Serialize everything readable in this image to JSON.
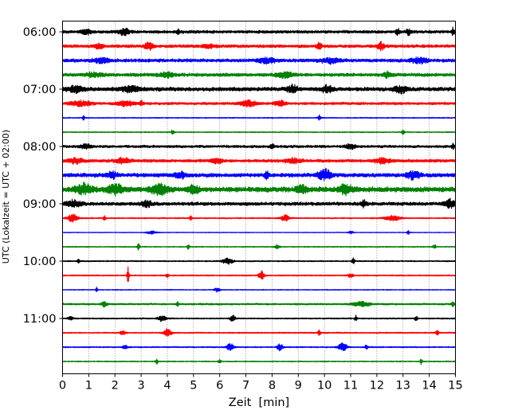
{
  "chart_data": {
    "type": "line",
    "title": "",
    "xlabel": "Zeit  [min]",
    "ylabel": "UTC (Lokalzeit = UTC + 02:00)",
    "xlim": [
      0,
      15
    ],
    "x_ticks": [
      0,
      1,
      2,
      3,
      4,
      5,
      6,
      7,
      8,
      9,
      10,
      11,
      12,
      13,
      14,
      15
    ],
    "x_tick_labels": [
      "0",
      "1",
      "2",
      "3",
      "4",
      "5",
      "6",
      "7",
      "8",
      "9",
      "10",
      "11",
      "12",
      "13",
      "14",
      "15"
    ],
    "grid": "vertical dotted lines at each minute",
    "y_tick_labels": [
      {
        "label": "06:00",
        "row": 0
      },
      {
        "label": "07:00",
        "row": 4
      },
      {
        "label": "08:00",
        "row": 8
      },
      {
        "label": "09:00",
        "row": 12
      },
      {
        "label": "10:00",
        "row": 16
      },
      {
        "label": "11:00",
        "row": 20
      }
    ],
    "row_interval_minutes": 15,
    "colors_cycle": [
      "#000000",
      "#ff0000",
      "#0000ff",
      "#008000"
    ],
    "traces": [
      {
        "start": "06:00",
        "color": "#000000",
        "base": 0.35,
        "events": [
          {
            "t": 2.35,
            "a": 0.7,
            "w": 0.18
          },
          {
            "t": 4.4,
            "a": 0.6,
            "w": 0.05
          },
          {
            "t": 12.8,
            "a": 0.7,
            "w": 0.07
          },
          {
            "t": 13.2,
            "a": 0.5,
            "w": 0.1
          },
          {
            "t": 14.9,
            "a": 0.7,
            "w": 0.05
          },
          {
            "t": 0.9,
            "a": 0.4,
            "w": 0.2
          }
        ]
      },
      {
        "start": "06:15",
        "color": "#ff0000",
        "base": 0.35,
        "events": [
          {
            "t": 3.3,
            "a": 0.7,
            "w": 0.15
          },
          {
            "t": 9.8,
            "a": 0.6,
            "w": 0.1
          },
          {
            "t": 12.15,
            "a": 0.8,
            "w": 0.12
          },
          {
            "t": 5.6,
            "a": 0.4,
            "w": 0.2
          },
          {
            "t": 1.4,
            "a": 0.4,
            "w": 0.2
          }
        ]
      },
      {
        "start": "06:30",
        "color": "#0000ff",
        "base": 0.4,
        "events": [
          {
            "t": 1.5,
            "a": 0.5,
            "w": 0.3
          },
          {
            "t": 7.8,
            "a": 0.5,
            "w": 0.3
          },
          {
            "t": 10.2,
            "a": 0.5,
            "w": 0.3
          },
          {
            "t": 13.6,
            "a": 0.5,
            "w": 0.3
          }
        ]
      },
      {
        "start": "06:45",
        "color": "#008000",
        "base": 0.4,
        "events": [
          {
            "t": 4.0,
            "a": 0.5,
            "w": 0.25
          },
          {
            "t": 8.5,
            "a": 0.5,
            "w": 0.3
          },
          {
            "t": 12.4,
            "a": 0.6,
            "w": 0.15
          },
          {
            "t": 1.2,
            "a": 0.4,
            "w": 0.3
          }
        ]
      },
      {
        "start": "07:00",
        "color": "#000000",
        "base": 0.45,
        "events": [
          {
            "t": 0.5,
            "a": 0.6,
            "w": 0.3
          },
          {
            "t": 2.6,
            "a": 0.6,
            "w": 0.3
          },
          {
            "t": 8.8,
            "a": 0.7,
            "w": 0.2
          },
          {
            "t": 10.1,
            "a": 0.7,
            "w": 0.2
          },
          {
            "t": 12.9,
            "a": 0.6,
            "w": 0.25
          }
        ]
      },
      {
        "start": "07:15",
        "color": "#ff0000",
        "base": 0.3,
        "events": [
          {
            "t": 0.7,
            "a": 0.5,
            "w": 0.4
          },
          {
            "t": 2.4,
            "a": 0.5,
            "w": 0.3
          },
          {
            "t": 3.0,
            "a": 0.7,
            "w": 0.06
          },
          {
            "t": 7.1,
            "a": 0.6,
            "w": 0.3
          },
          {
            "t": 8.3,
            "a": 0.6,
            "w": 0.2
          }
        ]
      },
      {
        "start": "07:30",
        "color": "#0000ff",
        "base": 0.12,
        "events": [
          {
            "t": 0.8,
            "a": 0.6,
            "w": 0.04
          },
          {
            "t": 9.8,
            "a": 0.6,
            "w": 0.05
          }
        ]
      },
      {
        "start": "07:45",
        "color": "#008000",
        "base": 0.12,
        "events": [
          {
            "t": 4.2,
            "a": 0.6,
            "w": 0.05
          },
          {
            "t": 13.0,
            "a": 0.6,
            "w": 0.05
          }
        ]
      },
      {
        "start": "08:00",
        "color": "#000000",
        "base": 0.3,
        "events": [
          {
            "t": 0.9,
            "a": 0.5,
            "w": 0.2
          },
          {
            "t": 8.0,
            "a": 0.6,
            "w": 0.08
          },
          {
            "t": 11.0,
            "a": 0.5,
            "w": 0.2
          },
          {
            "t": 14.9,
            "a": 0.6,
            "w": 0.05
          }
        ]
      },
      {
        "start": "08:15",
        "color": "#ff0000",
        "base": 0.35,
        "events": [
          {
            "t": 0.5,
            "a": 0.5,
            "w": 0.3
          },
          {
            "t": 2.3,
            "a": 0.5,
            "w": 0.3
          },
          {
            "t": 5.9,
            "a": 0.5,
            "w": 0.2
          },
          {
            "t": 8.8,
            "a": 0.5,
            "w": 0.3
          },
          {
            "t": 12.2,
            "a": 0.5,
            "w": 0.3
          }
        ]
      },
      {
        "start": "08:30",
        "color": "#0000ff",
        "base": 0.45,
        "events": [
          {
            "t": 7.8,
            "a": 0.8,
            "w": 0.08
          },
          {
            "t": 10.0,
            "a": 1.0,
            "w": 0.25
          },
          {
            "t": 13.4,
            "a": 0.8,
            "w": 0.25
          },
          {
            "t": 4.5,
            "a": 0.6,
            "w": 0.2
          },
          {
            "t": 1.9,
            "a": 0.6,
            "w": 0.2
          }
        ]
      },
      {
        "start": "08:45",
        "color": "#008000",
        "base": 0.6,
        "events": [
          {
            "t": 0.8,
            "a": 1.0,
            "w": 0.3
          },
          {
            "t": 2.0,
            "a": 1.0,
            "w": 0.3
          },
          {
            "t": 3.7,
            "a": 1.0,
            "w": 0.3
          },
          {
            "t": 5.0,
            "a": 0.8,
            "w": 0.2
          },
          {
            "t": 10.8,
            "a": 1.0,
            "w": 0.25
          },
          {
            "t": 9.1,
            "a": 0.8,
            "w": 0.2
          }
        ]
      },
      {
        "start": "09:00",
        "color": "#000000",
        "base": 0.4,
        "events": [
          {
            "t": 14.8,
            "a": 0.9,
            "w": 0.2
          },
          {
            "t": 0.4,
            "a": 0.6,
            "w": 0.3
          },
          {
            "t": 3.2,
            "a": 0.6,
            "w": 0.2
          },
          {
            "t": 11.5,
            "a": 0.6,
            "w": 0.1
          }
        ]
      },
      {
        "start": "09:15",
        "color": "#ff0000",
        "base": 0.15,
        "events": [
          {
            "t": 0.4,
            "a": 0.8,
            "w": 0.2
          },
          {
            "t": 1.6,
            "a": 0.5,
            "w": 0.05
          },
          {
            "t": 4.9,
            "a": 0.5,
            "w": 0.05
          },
          {
            "t": 8.5,
            "a": 0.6,
            "w": 0.15
          },
          {
            "t": 12.6,
            "a": 0.5,
            "w": 0.3
          }
        ]
      },
      {
        "start": "09:30",
        "color": "#0000ff",
        "base": 0.08,
        "events": [
          {
            "t": 3.4,
            "a": 0.3,
            "w": 0.2
          },
          {
            "t": 11.0,
            "a": 0.3,
            "w": 0.1
          },
          {
            "t": 13.2,
            "a": 0.4,
            "w": 0.05
          }
        ]
      },
      {
        "start": "09:45",
        "color": "#008000",
        "base": 0.12,
        "events": [
          {
            "t": 2.9,
            "a": 0.9,
            "w": 0.04
          },
          {
            "t": 4.8,
            "a": 0.5,
            "w": 0.05
          },
          {
            "t": 8.2,
            "a": 0.4,
            "w": 0.1
          },
          {
            "t": 14.2,
            "a": 0.6,
            "w": 0.05
          }
        ]
      },
      {
        "start": "10:00",
        "color": "#000000",
        "base": 0.15,
        "events": [
          {
            "t": 6.3,
            "a": 0.6,
            "w": 0.2
          },
          {
            "t": 11.1,
            "a": 0.6,
            "w": 0.05
          },
          {
            "t": 0.6,
            "a": 0.4,
            "w": 0.05
          }
        ]
      },
      {
        "start": "10:15",
        "color": "#ff0000",
        "base": 0.15,
        "events": [
          {
            "t": 2.5,
            "a": 2.2,
            "w": 0.04
          },
          {
            "t": 7.6,
            "a": 1.0,
            "w": 0.1
          },
          {
            "t": 4.0,
            "a": 0.5,
            "w": 0.05
          },
          {
            "t": 11.0,
            "a": 0.4,
            "w": 0.1
          }
        ]
      },
      {
        "start": "10:30",
        "color": "#0000ff",
        "base": 0.1,
        "events": [
          {
            "t": 1.3,
            "a": 0.6,
            "w": 0.04
          },
          {
            "t": 5.9,
            "a": 0.4,
            "w": 0.1
          }
        ]
      },
      {
        "start": "10:45",
        "color": "#008000",
        "base": 0.2,
        "events": [
          {
            "t": 1.6,
            "a": 0.5,
            "w": 0.1
          },
          {
            "t": 11.4,
            "a": 0.6,
            "w": 0.3
          },
          {
            "t": 14.9,
            "a": 0.6,
            "w": 0.05
          },
          {
            "t": 4.4,
            "a": 0.4,
            "w": 0.05
          }
        ]
      },
      {
        "start": "11:00",
        "color": "#000000",
        "base": 0.15,
        "events": [
          {
            "t": 3.8,
            "a": 0.6,
            "w": 0.15
          },
          {
            "t": 6.5,
            "a": 0.6,
            "w": 0.1
          },
          {
            "t": 11.2,
            "a": 0.6,
            "w": 0.05
          },
          {
            "t": 13.5,
            "a": 0.6,
            "w": 0.05
          },
          {
            "t": 0.3,
            "a": 0.4,
            "w": 0.1
          }
        ]
      },
      {
        "start": "11:15",
        "color": "#ff0000",
        "base": 0.15,
        "events": [
          {
            "t": 4.0,
            "a": 0.8,
            "w": 0.15
          },
          {
            "t": 9.8,
            "a": 0.6,
            "w": 0.05
          },
          {
            "t": 14.3,
            "a": 0.6,
            "w": 0.05
          },
          {
            "t": 2.3,
            "a": 0.4,
            "w": 0.1
          }
        ]
      },
      {
        "start": "11:30",
        "color": "#0000ff",
        "base": 0.15,
        "events": [
          {
            "t": 6.4,
            "a": 0.9,
            "w": 0.12
          },
          {
            "t": 8.3,
            "a": 0.7,
            "w": 0.1
          },
          {
            "t": 10.7,
            "a": 1.0,
            "w": 0.15
          },
          {
            "t": 11.6,
            "a": 0.6,
            "w": 0.05
          },
          {
            "t": 2.4,
            "a": 0.4,
            "w": 0.1
          }
        ]
      },
      {
        "start": "11:45",
        "color": "#008000",
        "base": 0.12,
        "events": [
          {
            "t": 3.6,
            "a": 0.5,
            "w": 0.05
          },
          {
            "t": 13.7,
            "a": 0.6,
            "w": 0.05
          },
          {
            "t": 6.0,
            "a": 0.4,
            "w": 0.05
          }
        ]
      }
    ]
  }
}
